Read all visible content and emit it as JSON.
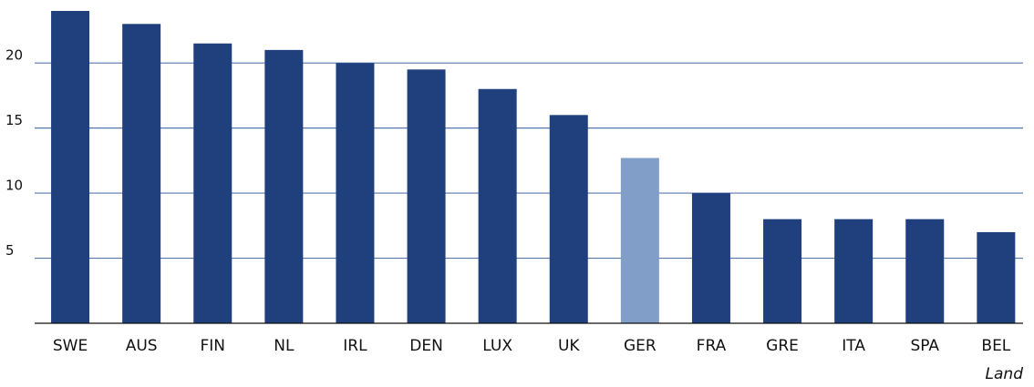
{
  "chart_data": {
    "type": "bar",
    "x_label": "Land",
    "categories": [
      "SWE",
      "AUS",
      "FIN",
      "NL",
      "IRL",
      "DEN",
      "LUX",
      "UK",
      "GER",
      "FRA",
      "GRE",
      "ITA",
      "SPA",
      "BEL"
    ],
    "values": [
      24,
      23,
      21.5,
      21,
      20,
      19.5,
      18,
      16,
      12.7,
      10,
      8,
      8,
      8,
      7
    ],
    "colors": [
      "#1f3f7d",
      "#1f3f7d",
      "#1f3f7d",
      "#1f3f7d",
      "#1f3f7d",
      "#1f3f7d",
      "#1f3f7d",
      "#1f3f7d",
      "#819ec9",
      "#1f3f7d",
      "#1f3f7d",
      "#1f3f7d",
      "#1f3f7d",
      "#1f3f7d"
    ],
    "ylim": [
      0,
      24
    ],
    "yticks": [
      5,
      10,
      15,
      20
    ],
    "grid": true
  }
}
